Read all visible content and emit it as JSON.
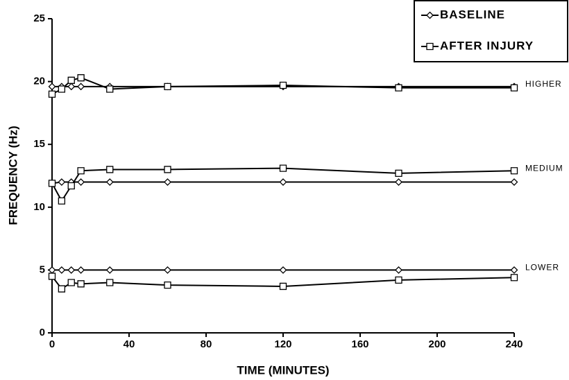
{
  "chart_data": {
    "type": "line",
    "title_x": "TIME (MINUTES)",
    "title_y": "FREQUENCY (Hz)",
    "x": [
      0,
      5,
      10,
      15,
      30,
      60,
      120,
      180,
      240
    ],
    "groups": [
      "HIGHER",
      "MEDIUM",
      "LOWER"
    ],
    "series": [
      {
        "name": "BASELINE",
        "marker": "diamond",
        "color": "#000000",
        "values": [
          [
            19.6,
            19.6,
            19.6,
            19.6,
            19.6,
            19.6,
            19.6,
            19.6,
            19.6
          ],
          [
            11.9,
            12.0,
            12.0,
            12.0,
            12.0,
            12.0,
            12.0,
            12.0,
            12.0
          ],
          [
            5.0,
            5.0,
            5.0,
            5.0,
            5.0,
            5.0,
            5.0,
            5.0,
            5.0
          ]
        ]
      },
      {
        "name": "AFTER INJURY",
        "marker": "square",
        "color": "#000000",
        "values": [
          [
            19.0,
            19.4,
            20.1,
            20.3,
            19.4,
            19.6,
            19.7,
            19.5,
            19.5
          ],
          [
            11.9,
            10.5,
            11.7,
            12.9,
            13.0,
            13.0,
            13.1,
            12.7,
            12.9
          ],
          [
            4.5,
            3.5,
            4.0,
            3.9,
            4.0,
            3.8,
            3.7,
            4.2,
            4.4
          ]
        ]
      }
    ],
    "xlim": [
      0,
      240
    ],
    "xticks": [
      0,
      40,
      80,
      120,
      160,
      200,
      240
    ],
    "ylim": [
      0,
      25
    ],
    "yticks": [
      0,
      5,
      10,
      15,
      20,
      25
    ],
    "legend": "top-right"
  }
}
